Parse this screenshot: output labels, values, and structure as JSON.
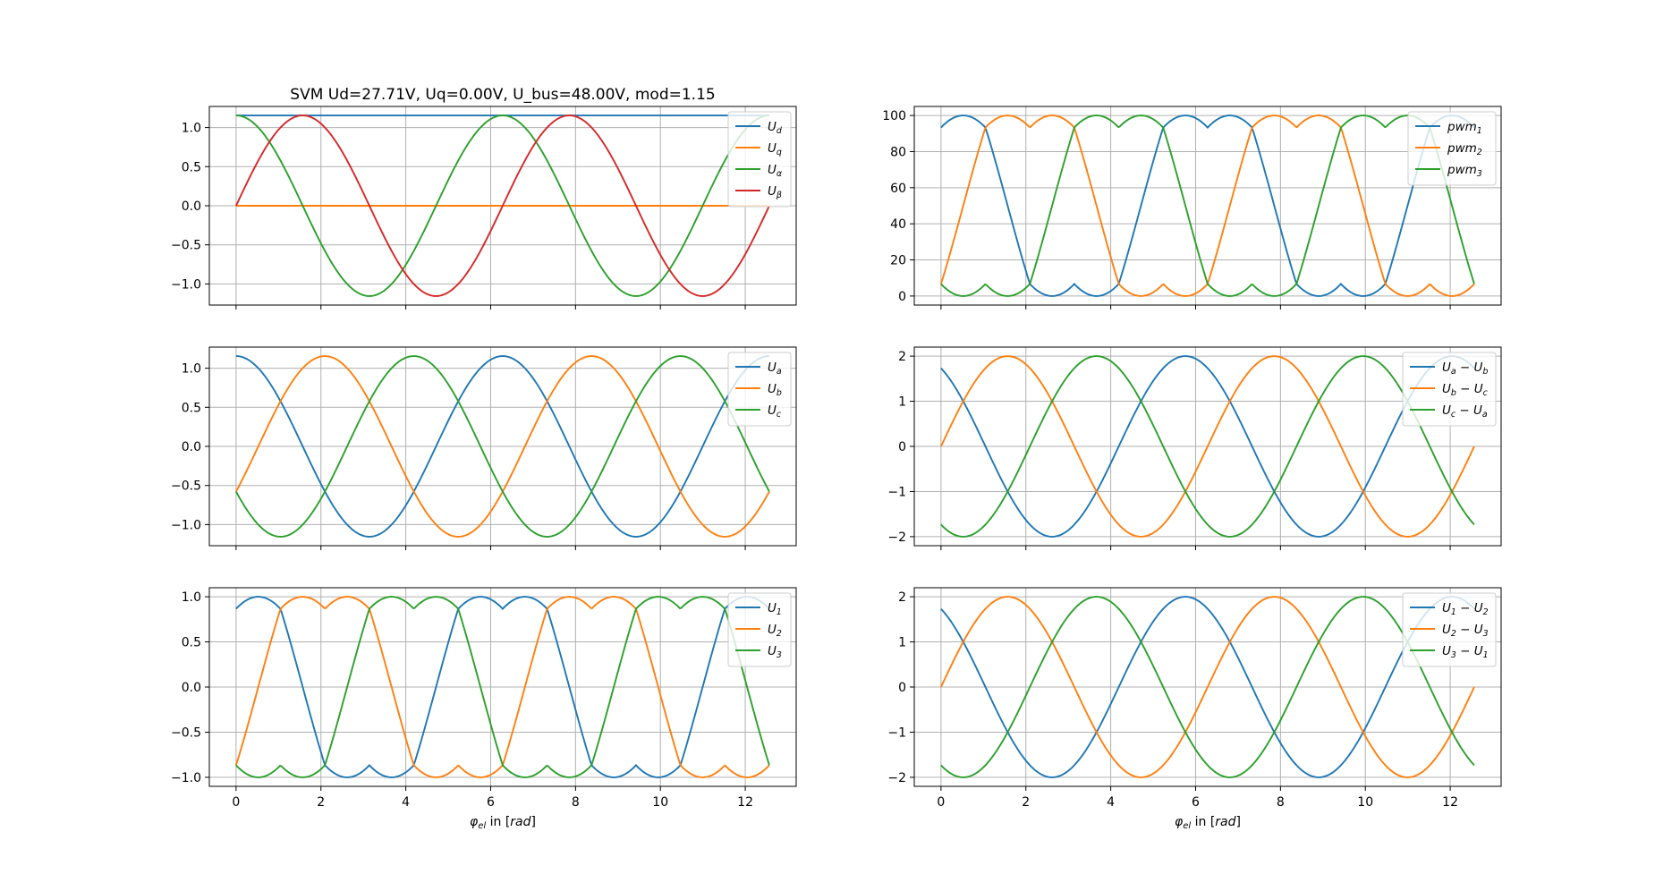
{
  "figure": {
    "title": "SVM Ud=27.71V, Uq=0.00V, U_bus=48.00V, mod=1.15",
    "xlabel": "φ_el in [rad]"
  },
  "colors": {
    "C0": "#1f77b4",
    "C1": "#ff7f0e",
    "C2": "#2ca02c",
    "C3": "#d62728",
    "grid": "#b0b0b0"
  },
  "chart_data": [
    {
      "id": "svm-input",
      "type": "line",
      "title": "SVM Ud=27.71V, Uq=0.00V, U_bus=48.00V, mod=1.15",
      "xlabel": "",
      "ylabel": "",
      "xlim": [
        -0.63,
        13.2
      ],
      "ylim": [
        -1.27,
        1.27
      ],
      "xticks": [
        0,
        2,
        4,
        6,
        8,
        10,
        12
      ],
      "xticklabels_visible": false,
      "yticks": [
        -1.0,
        -0.5,
        0.0,
        0.5,
        1.0
      ],
      "grid": true,
      "legend": "upper right",
      "x_range": [
        0,
        12.566
      ],
      "n_points": 400,
      "series": [
        {
          "name": "U_d",
          "color": "#1f77b4",
          "function": "constant",
          "amplitude": 1.155
        },
        {
          "name": "U_q",
          "color": "#ff7f0e",
          "function": "constant",
          "amplitude": 0.0
        },
        {
          "name": "U_α",
          "color": "#2ca02c",
          "function": "cos",
          "amplitude": 1.155,
          "phase_deg": 0
        },
        {
          "name": "U_β",
          "color": "#d62728",
          "function": "sin",
          "amplitude": 1.155,
          "phase_deg": 0
        }
      ]
    },
    {
      "id": "pwm",
      "type": "line",
      "title": "",
      "xlabel": "",
      "ylabel": "",
      "xlim": [
        -0.63,
        13.2
      ],
      "ylim": [
        -5,
        105
      ],
      "xticks": [
        0,
        2,
        4,
        6,
        8,
        10,
        12
      ],
      "xticklabels_visible": false,
      "yticks": [
        0,
        20,
        40,
        60,
        80,
        100
      ],
      "grid": true,
      "legend": "upper right",
      "x_range": [
        0,
        12.566
      ],
      "n_points": 400,
      "series": [
        {
          "name": "pwm_1",
          "color": "#1f77b4",
          "function": "svm_pwm",
          "phase_deg": 0
        },
        {
          "name": "pwm_2",
          "color": "#ff7f0e",
          "function": "svm_pwm",
          "phase_deg": -120
        },
        {
          "name": "pwm_3",
          "color": "#2ca02c",
          "function": "svm_pwm",
          "phase_deg": 120
        }
      ]
    },
    {
      "id": "phase-abc",
      "type": "line",
      "title": "",
      "xlabel": "",
      "ylabel": "",
      "xlim": [
        -0.63,
        13.2
      ],
      "ylim": [
        -1.27,
        1.27
      ],
      "xticks": [
        0,
        2,
        4,
        6,
        8,
        10,
        12
      ],
      "xticklabels_visible": false,
      "yticks": [
        -1.0,
        -0.5,
        0.0,
        0.5,
        1.0
      ],
      "grid": true,
      "legend": "upper right",
      "x_range": [
        0,
        12.566
      ],
      "n_points": 400,
      "series": [
        {
          "name": "U_a",
          "color": "#1f77b4",
          "function": "cos",
          "amplitude": 1.155,
          "phase_deg": 0
        },
        {
          "name": "U_b",
          "color": "#ff7f0e",
          "function": "cos",
          "amplitude": 1.155,
          "phase_deg": -120
        },
        {
          "name": "U_c",
          "color": "#2ca02c",
          "function": "cos",
          "amplitude": 1.155,
          "phase_deg": 120
        }
      ]
    },
    {
      "id": "line-abc",
      "type": "line",
      "title": "",
      "xlabel": "",
      "ylabel": "",
      "xlim": [
        -0.63,
        13.2
      ],
      "ylim": [
        -2.2,
        2.2
      ],
      "xticks": [
        0,
        2,
        4,
        6,
        8,
        10,
        12
      ],
      "xticklabels_visible": false,
      "yticks": [
        -2,
        -1,
        0,
        1,
        2
      ],
      "grid": true,
      "legend": "upper right",
      "x_range": [
        0,
        12.566
      ],
      "n_points": 400,
      "series": [
        {
          "name": "U_a − U_b",
          "color": "#1f77b4",
          "function": "cos",
          "amplitude": 2.0,
          "phase_deg": 30
        },
        {
          "name": "U_b − U_c",
          "color": "#ff7f0e",
          "function": "cos",
          "amplitude": 2.0,
          "phase_deg": -90
        },
        {
          "name": "U_c − U_a",
          "color": "#2ca02c",
          "function": "cos",
          "amplitude": 2.0,
          "phase_deg": 150
        }
      ]
    },
    {
      "id": "phase-123",
      "type": "line",
      "title": "",
      "xlabel": "φ_el in [rad]",
      "ylabel": "",
      "xlim": [
        -0.63,
        13.2
      ],
      "ylim": [
        -1.1,
        1.1
      ],
      "xticks": [
        0,
        2,
        4,
        6,
        8,
        10,
        12
      ],
      "xticklabels_visible": true,
      "yticks": [
        -1.0,
        -0.5,
        0.0,
        0.5,
        1.0
      ],
      "grid": true,
      "legend": "upper right",
      "x_range": [
        0,
        12.566
      ],
      "n_points": 400,
      "series": [
        {
          "name": "U_1",
          "color": "#1f77b4",
          "function": "svm_norm",
          "phase_deg": 0
        },
        {
          "name": "U_2",
          "color": "#ff7f0e",
          "function": "svm_norm",
          "phase_deg": -120
        },
        {
          "name": "U_3",
          "color": "#2ca02c",
          "function": "svm_norm",
          "phase_deg": 120
        }
      ]
    },
    {
      "id": "line-123",
      "type": "line",
      "title": "",
      "xlabel": "φ_el in [rad]",
      "ylabel": "",
      "xlim": [
        -0.63,
        13.2
      ],
      "ylim": [
        -2.2,
        2.2
      ],
      "xticks": [
        0,
        2,
        4,
        6,
        8,
        10,
        12
      ],
      "xticklabels_visible": true,
      "yticks": [
        -2,
        -1,
        0,
        1,
        2
      ],
      "grid": true,
      "legend": "upper right",
      "x_range": [
        0,
        12.566
      ],
      "n_points": 400,
      "series": [
        {
          "name": "U_1 − U_2",
          "color": "#1f77b4",
          "function": "cos",
          "amplitude": 2.0,
          "phase_deg": 30
        },
        {
          "name": "U_2 − U_3",
          "color": "#ff7f0e",
          "function": "cos",
          "amplitude": 2.0,
          "phase_deg": -90
        },
        {
          "name": "U_3 − U_1",
          "color": "#2ca02c",
          "function": "cos",
          "amplitude": 2.0,
          "phase_deg": 150
        }
      ]
    }
  ]
}
